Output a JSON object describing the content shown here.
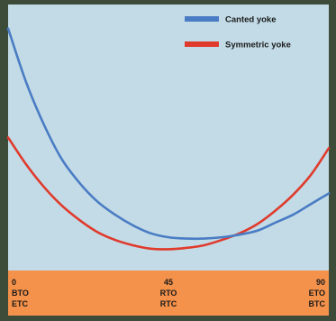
{
  "chart_data": {
    "type": "line",
    "title": "",
    "xlabel": "",
    "ylabel": "",
    "xlim": [
      0,
      90
    ],
    "ylim": [
      0,
      100
    ],
    "grid": false,
    "legend_placement": "top-right",
    "x_ticks": [
      {
        "value": 0,
        "lines": [
          "0",
          "BTO",
          "ETC"
        ]
      },
      {
        "value": 45,
        "lines": [
          "45",
          "RTO",
          "RTC"
        ]
      },
      {
        "value": 90,
        "lines": [
          "90",
          "ETO",
          "BTC"
        ]
      }
    ],
    "series": [
      {
        "name": "Canted yoke",
        "color": "#4a7cc4",
        "x": [
          0,
          5,
          10,
          15,
          20,
          25,
          30,
          35,
          40,
          45,
          50,
          55,
          60,
          65,
          70,
          75,
          80,
          85,
          90
        ],
        "y": [
          91,
          71,
          55,
          42,
          33,
          26,
          21,
          17,
          14,
          12.5,
          12,
          12,
          12.5,
          13.5,
          15,
          18,
          21,
          25,
          29
        ]
      },
      {
        "name": "Symmetric yoke",
        "color": "#e03a2c",
        "x": [
          0,
          5,
          10,
          15,
          20,
          25,
          30,
          35,
          40,
          45,
          50,
          55,
          60,
          65,
          70,
          75,
          80,
          85,
          90
        ],
        "y": [
          50,
          40,
          31.5,
          24.5,
          19,
          14.5,
          11.5,
          9.5,
          8.2,
          8,
          8.5,
          9.5,
          11.5,
          14,
          17.5,
          22.5,
          28.5,
          36,
          46
        ]
      }
    ]
  }
}
